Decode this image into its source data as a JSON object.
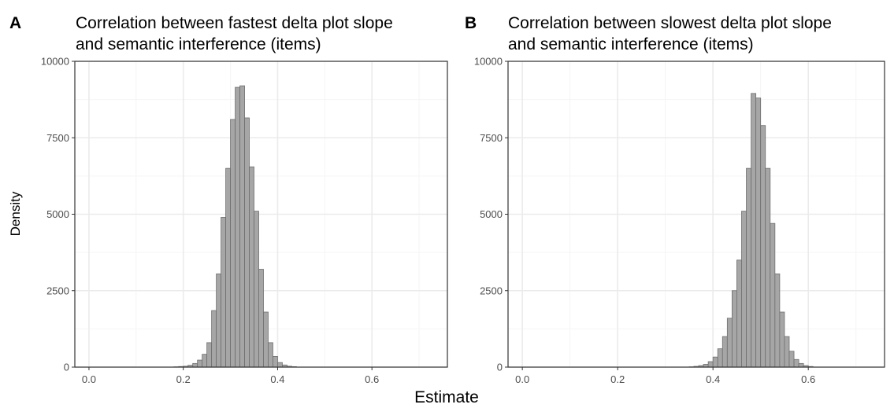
{
  "shared": {
    "ylabel": "Density",
    "xlabel": "Estimate"
  },
  "chart_data": [
    {
      "type": "bar",
      "tag": "A",
      "title_lines": [
        "Correlation between fastest delta plot slope",
        "and semantic interference (items)"
      ],
      "xlabel": "Estimate",
      "ylabel": "Density",
      "xlim": [
        -0.03,
        0.76
      ],
      "ylim": [
        0,
        10000
      ],
      "xticks": [
        0.0,
        0.2,
        0.4,
        0.6
      ],
      "xtick_labels": [
        "0.0",
        "0.2",
        "0.4",
        "0.6"
      ],
      "yticks": [
        0,
        2500,
        5000,
        7500,
        10000
      ],
      "ytick_labels": [
        "0",
        "2500",
        "5000",
        "7500",
        "10000"
      ],
      "grid": true,
      "bin_width": 0.01,
      "bins": [
        {
          "x": 0.185,
          "y": 10
        },
        {
          "x": 0.195,
          "y": 20
        },
        {
          "x": 0.205,
          "y": 30
        },
        {
          "x": 0.215,
          "y": 60
        },
        {
          "x": 0.225,
          "y": 120
        },
        {
          "x": 0.235,
          "y": 230
        },
        {
          "x": 0.245,
          "y": 420
        },
        {
          "x": 0.255,
          "y": 800
        },
        {
          "x": 0.265,
          "y": 1850
        },
        {
          "x": 0.275,
          "y": 3050
        },
        {
          "x": 0.285,
          "y": 4900
        },
        {
          "x": 0.295,
          "y": 6500
        },
        {
          "x": 0.305,
          "y": 8100
        },
        {
          "x": 0.315,
          "y": 9150
        },
        {
          "x": 0.325,
          "y": 9200
        },
        {
          "x": 0.335,
          "y": 8150
        },
        {
          "x": 0.345,
          "y": 6550
        },
        {
          "x": 0.355,
          "y": 5100
        },
        {
          "x": 0.365,
          "y": 3200
        },
        {
          "x": 0.375,
          "y": 1800
        },
        {
          "x": 0.385,
          "y": 800
        },
        {
          "x": 0.395,
          "y": 350
        },
        {
          "x": 0.405,
          "y": 150
        },
        {
          "x": 0.415,
          "y": 70
        },
        {
          "x": 0.425,
          "y": 30
        },
        {
          "x": 0.435,
          "y": 15
        }
      ]
    },
    {
      "type": "bar",
      "tag": "B",
      "title_lines": [
        "Correlation between slowest delta plot slope",
        "and semantic interference (items)"
      ],
      "xlabel": "Estimate",
      "ylabel": "Density",
      "xlim": [
        -0.03,
        0.76
      ],
      "ylim": [
        0,
        10000
      ],
      "xticks": [
        0.0,
        0.2,
        0.4,
        0.6
      ],
      "xtick_labels": [
        "0.0",
        "0.2",
        "0.4",
        "0.6"
      ],
      "yticks": [
        0,
        2500,
        5000,
        7500,
        10000
      ],
      "ytick_labels": [
        "0",
        "2500",
        "5000",
        "7500",
        "10000"
      ],
      "grid": true,
      "bin_width": 0.01,
      "bins": [
        {
          "x": 0.355,
          "y": 10
        },
        {
          "x": 0.365,
          "y": 25
        },
        {
          "x": 0.375,
          "y": 50
        },
        {
          "x": 0.385,
          "y": 90
        },
        {
          "x": 0.395,
          "y": 180
        },
        {
          "x": 0.405,
          "y": 330
        },
        {
          "x": 0.415,
          "y": 600
        },
        {
          "x": 0.425,
          "y": 1000
        },
        {
          "x": 0.435,
          "y": 1600
        },
        {
          "x": 0.445,
          "y": 2500
        },
        {
          "x": 0.455,
          "y": 3500
        },
        {
          "x": 0.465,
          "y": 5100
        },
        {
          "x": 0.475,
          "y": 6500
        },
        {
          "x": 0.485,
          "y": 8950
        },
        {
          "x": 0.495,
          "y": 8800
        },
        {
          "x": 0.505,
          "y": 7900
        },
        {
          "x": 0.515,
          "y": 6500
        },
        {
          "x": 0.525,
          "y": 4700
        },
        {
          "x": 0.535,
          "y": 3050
        },
        {
          "x": 0.545,
          "y": 1800
        },
        {
          "x": 0.555,
          "y": 1000
        },
        {
          "x": 0.565,
          "y": 520
        },
        {
          "x": 0.575,
          "y": 250
        },
        {
          "x": 0.585,
          "y": 120
        },
        {
          "x": 0.595,
          "y": 50
        },
        {
          "x": 0.605,
          "y": 20
        }
      ]
    }
  ],
  "colors": {
    "bar_fill": "#a6a6a6",
    "bar_stroke": "#6e6e6e",
    "grid_major": "#ebebeb",
    "grid_minor": "#f5f5f5",
    "panel_border": "#333333",
    "tick_text": "#4d4d4d"
  }
}
